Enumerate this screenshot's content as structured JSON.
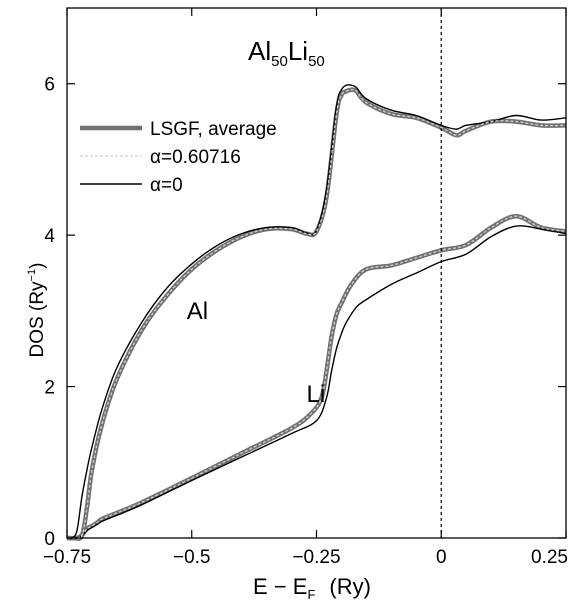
{
  "chart_data": {
    "type": "line",
    "title_main": "Al",
    "title_sub1": "50",
    "title_mid": "Li",
    "title_sub2": "50",
    "xlabel": {
      "pre": "E − E",
      "sub": "F",
      "post": "(Ry)"
    },
    "ylabel": {
      "pre": "DOS (Ry",
      "sup": "−1",
      "post": ")"
    },
    "xlim": [
      -0.75,
      0.25
    ],
    "ylim": [
      0,
      7
    ],
    "xticks": [
      -0.75,
      -0.5,
      -0.25,
      0,
      0.25
    ],
    "xtick_labels": [
      "−0.75",
      "−0.5",
      "−0.25",
      "0",
      "0.25"
    ],
    "yticks": [
      0,
      2,
      4,
      6
    ],
    "ytick_labels": [
      "0",
      "2",
      "4",
      "6"
    ],
    "fermi_level_x": 0,
    "curve_labels": [
      {
        "text": "Al",
        "x": -0.51,
        "y": 3.0
      },
      {
        "text": "Li",
        "x": -0.27,
        "y": 1.9
      }
    ],
    "legend_placement": "upper-left",
    "series": [
      {
        "name": "LSGF, average",
        "component": "Al",
        "style": "thick-gray",
        "x": [
          -0.75,
          -0.735,
          -0.72,
          -0.71,
          -0.7,
          -0.68,
          -0.65,
          -0.6,
          -0.55,
          -0.5,
          -0.45,
          -0.4,
          -0.35,
          -0.3,
          -0.27,
          -0.25,
          -0.23,
          -0.21,
          -0.2,
          -0.19,
          -0.18,
          -0.17,
          -0.15,
          -0.1,
          -0.05,
          0,
          0.03,
          0.05,
          0.1,
          0.15,
          0.2,
          0.25
        ],
        "y": [
          0,
          0,
          0.03,
          0.4,
          0.9,
          1.5,
          2.1,
          2.75,
          3.2,
          3.55,
          3.8,
          3.98,
          4.08,
          4.08,
          4.02,
          4.05,
          4.5,
          5.6,
          5.85,
          5.9,
          5.92,
          5.9,
          5.75,
          5.6,
          5.55,
          5.42,
          5.32,
          5.38,
          5.5,
          5.5,
          5.45,
          5.45
        ]
      },
      {
        "name": "α=0.60716",
        "component": "Al",
        "style": "dashed-light",
        "x": [
          -0.75,
          -0.735,
          -0.72,
          -0.71,
          -0.7,
          -0.68,
          -0.65,
          -0.6,
          -0.55,
          -0.5,
          -0.45,
          -0.4,
          -0.35,
          -0.3,
          -0.27,
          -0.25,
          -0.23,
          -0.21,
          -0.2,
          -0.19,
          -0.18,
          -0.17,
          -0.15,
          -0.1,
          -0.05,
          0,
          0.03,
          0.05,
          0.1,
          0.15,
          0.2,
          0.25
        ],
        "y": [
          0,
          0,
          0.03,
          0.4,
          0.9,
          1.5,
          2.1,
          2.75,
          3.2,
          3.55,
          3.8,
          3.98,
          4.08,
          4.08,
          4.02,
          4.05,
          4.5,
          5.6,
          5.85,
          5.9,
          5.92,
          5.9,
          5.75,
          5.6,
          5.55,
          5.42,
          5.32,
          5.38,
          5.5,
          5.5,
          5.45,
          5.45
        ]
      },
      {
        "name": "α=0",
        "component": "Al",
        "style": "thin-black",
        "x": [
          -0.75,
          -0.74,
          -0.73,
          -0.72,
          -0.71,
          -0.7,
          -0.68,
          -0.65,
          -0.6,
          -0.55,
          -0.5,
          -0.45,
          -0.4,
          -0.35,
          -0.3,
          -0.27,
          -0.25,
          -0.23,
          -0.21,
          -0.2,
          -0.19,
          -0.18,
          -0.17,
          -0.15,
          -0.1,
          -0.05,
          0,
          0.03,
          0.05,
          0.1,
          0.15,
          0.2,
          0.25
        ],
        "y": [
          0,
          0,
          0.1,
          0.55,
          0.9,
          1.2,
          1.7,
          2.25,
          2.85,
          3.3,
          3.62,
          3.86,
          4.02,
          4.1,
          4.1,
          4.03,
          4.06,
          4.6,
          5.7,
          5.92,
          5.98,
          5.98,
          5.95,
          5.8,
          5.65,
          5.58,
          5.45,
          5.4,
          5.45,
          5.5,
          5.58,
          5.52,
          5.55
        ]
      },
      {
        "name": "LSGF, average",
        "component": "Li",
        "style": "thick-gray",
        "x": [
          -0.75,
          -0.73,
          -0.72,
          -0.71,
          -0.7,
          -0.69,
          -0.68,
          -0.65,
          -0.6,
          -0.5,
          -0.4,
          -0.3,
          -0.26,
          -0.24,
          -0.23,
          -0.22,
          -0.21,
          -0.2,
          -0.18,
          -0.15,
          -0.1,
          -0.05,
          0,
          0.05,
          0.1,
          0.15,
          0.2,
          0.25
        ],
        "y": [
          0,
          0,
          0.04,
          0.12,
          0.16,
          0.2,
          0.25,
          0.33,
          0.47,
          0.79,
          1.12,
          1.45,
          1.65,
          1.85,
          2.2,
          2.65,
          2.95,
          3.1,
          3.35,
          3.55,
          3.6,
          3.7,
          3.8,
          3.87,
          4.1,
          4.25,
          4.1,
          4.05
        ]
      },
      {
        "name": "α=0.60716",
        "component": "Li",
        "style": "dashed-light",
        "x": [
          -0.75,
          -0.73,
          -0.72,
          -0.71,
          -0.7,
          -0.69,
          -0.68,
          -0.65,
          -0.6,
          -0.5,
          -0.4,
          -0.3,
          -0.26,
          -0.24,
          -0.23,
          -0.22,
          -0.21,
          -0.2,
          -0.18,
          -0.15,
          -0.1,
          -0.05,
          0,
          0.05,
          0.1,
          0.15,
          0.2,
          0.25
        ],
        "y": [
          0,
          0,
          0.04,
          0.12,
          0.16,
          0.2,
          0.25,
          0.33,
          0.47,
          0.79,
          1.12,
          1.45,
          1.65,
          1.85,
          2.2,
          2.65,
          2.95,
          3.1,
          3.35,
          3.55,
          3.6,
          3.7,
          3.8,
          3.87,
          4.1,
          4.25,
          4.1,
          4.05
        ]
      },
      {
        "name": "α=0",
        "component": "Li",
        "style": "thin-black",
        "x": [
          -0.75,
          -0.73,
          -0.72,
          -0.71,
          -0.7,
          -0.69,
          -0.68,
          -0.65,
          -0.6,
          -0.5,
          -0.4,
          -0.3,
          -0.25,
          -0.23,
          -0.22,
          -0.21,
          -0.2,
          -0.19,
          -0.17,
          -0.15,
          -0.1,
          -0.05,
          0,
          0.05,
          0.1,
          0.15,
          0.2,
          0.25
        ],
        "y": [
          0,
          0,
          0.03,
          0.1,
          0.14,
          0.18,
          0.22,
          0.3,
          0.44,
          0.76,
          1.07,
          1.38,
          1.55,
          1.85,
          2.2,
          2.5,
          2.7,
          2.85,
          3.05,
          3.15,
          3.35,
          3.5,
          3.65,
          3.75,
          3.98,
          4.12,
          4.08,
          4.02
        ]
      }
    ],
    "legend": [
      {
        "label": "LSGF, average",
        "style": "thick-gray"
      },
      {
        "label": "α=0.60716",
        "style": "dashed-light"
      },
      {
        "label": "α=0",
        "style": "thin-black"
      }
    ],
    "colors": {
      "thick_gray": "#707070",
      "dashed_light": "#d0d0d0",
      "thin_black": "#000000"
    }
  }
}
